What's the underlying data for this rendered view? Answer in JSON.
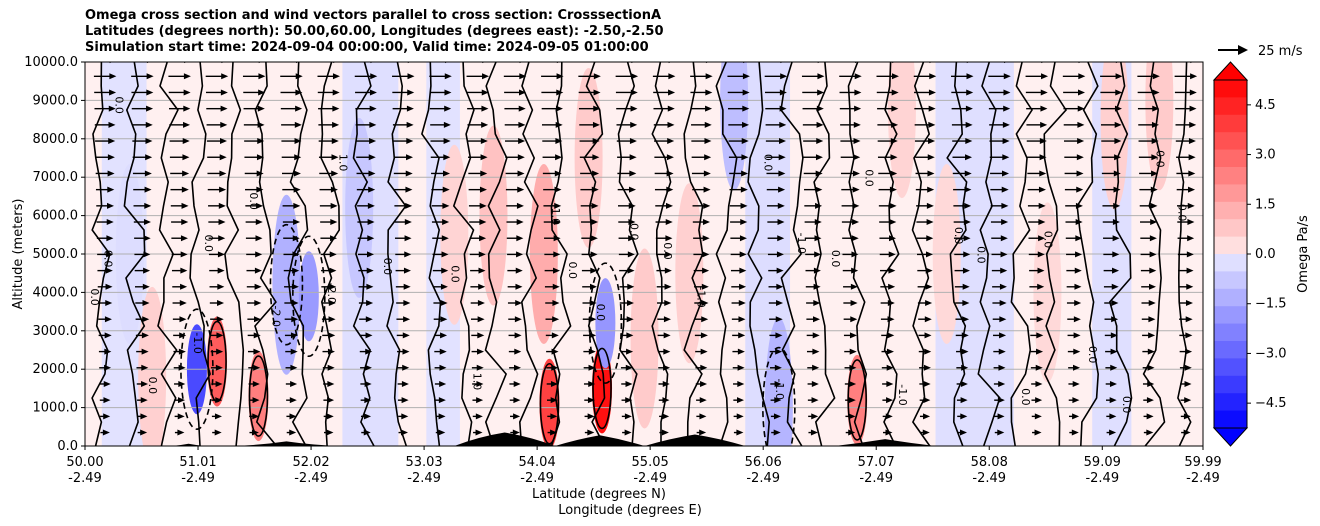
{
  "chart_data": {
    "type": "contour",
    "title_lines": [
      "Omega cross section and wind vectors parallel to cross section: CrosssectionA",
      "Latitudes (degrees north): 50.00,60.00, Longitudes (degrees east): -2.50,-2.50",
      "Simulation start time: 2024-09-04 00:00:00, Valid time: 2024-09-05 01:00:00"
    ],
    "ylabel": "Altitude (meters)",
    "xlabel_lines": [
      "Latitude (degrees N)",
      "Longitude (degrees E)"
    ],
    "ylim": [
      0,
      10000
    ],
    "y_ticks": [
      "0.0",
      "1000.0",
      "2000.0",
      "3000.0",
      "4000.0",
      "5000.0",
      "6000.0",
      "7000.0",
      "8000.0",
      "9000.0",
      "10000.0"
    ],
    "xlim": [
      50.0,
      59.99
    ],
    "x_ticks": [
      {
        "lat": "50.00",
        "lon": "-2.49"
      },
      {
        "lat": "51.01",
        "lon": "-2.49"
      },
      {
        "lat": "52.02",
        "lon": "-2.49"
      },
      {
        "lat": "53.03",
        "lon": "-2.49"
      },
      {
        "lat": "54.04",
        "lon": "-2.49"
      },
      {
        "lat": "55.05",
        "lon": "-2.49"
      },
      {
        "lat": "56.06",
        "lon": "-2.49"
      },
      {
        "lat": "57.07",
        "lon": "-2.49"
      },
      {
        "lat": "58.08",
        "lon": "-2.49"
      },
      {
        "lat": "59.09",
        "lon": "-2.49"
      },
      {
        "lat": "59.99",
        "lon": "-2.49"
      }
    ],
    "grid": "horizontal",
    "colorbar": {
      "label": "Omega Pa/s",
      "range": [
        -5.25,
        5.25
      ],
      "ticks": [
        "4.5",
        "3.0",
        "1.5",
        "0.0",
        "−1.5",
        "−3.0",
        "−4.5"
      ],
      "tick_values": [
        4.5,
        3.0,
        1.5,
        0.0,
        -1.5,
        -3.0,
        -4.5
      ],
      "levels": 20,
      "color_positive": "#ff0000",
      "color_negative": "#0000ff"
    },
    "wind_key": {
      "label": "25 m/s",
      "speed": 25
    },
    "contour_labels": [
      "0.0",
      "-1.0",
      "1.0",
      "-2.0",
      "2.0"
    ],
    "omega_cells": [
      {
        "lat": 50.6,
        "alt": 1800,
        "value": 0.6
      },
      {
        "lat": 51.0,
        "alt": 2000,
        "value": -3.6
      },
      {
        "lat": 51.18,
        "alt": 2200,
        "value": 3.2
      },
      {
        "lat": 51.55,
        "alt": 1300,
        "value": 2.4
      },
      {
        "lat": 51.8,
        "alt": 4200,
        "value": -1.3
      },
      {
        "lat": 52.0,
        "alt": 3900,
        "value": -1.8
      },
      {
        "lat": 52.45,
        "alt": 6200,
        "value": -0.8
      },
      {
        "lat": 53.3,
        "alt": 5500,
        "value": 0.5
      },
      {
        "lat": 53.65,
        "alt": 6000,
        "value": 0.9
      },
      {
        "lat": 54.1,
        "alt": 5000,
        "value": 1.4
      },
      {
        "lat": 54.15,
        "alt": 1100,
        "value": 3.8
      },
      {
        "lat": 54.5,
        "alt": 7500,
        "value": 0.7
      },
      {
        "lat": 54.62,
        "alt": 1500,
        "value": 4.9
      },
      {
        "lat": 54.65,
        "alt": 3200,
        "value": -1.9
      },
      {
        "lat": 55.0,
        "alt": 2800,
        "value": 0.7
      },
      {
        "lat": 55.4,
        "alt": 4500,
        "value": 0.6
      },
      {
        "lat": 56.2,
        "alt": 1000,
        "value": -1.2
      },
      {
        "lat": 56.9,
        "alt": 1200,
        "value": 2.4
      },
      {
        "lat": 57.3,
        "alt": 8800,
        "value": 0.5
      },
      {
        "lat": 57.7,
        "alt": 5000,
        "value": 0.4
      },
      {
        "lat": 58.6,
        "alt": 4000,
        "value": 0.4
      },
      {
        "lat": 59.2,
        "alt": 8500,
        "value": 0.6
      },
      {
        "lat": 59.6,
        "alt": 9000,
        "value": 0.7
      },
      {
        "lat": 55.8,
        "alt": 9000,
        "value": -1.0
      },
      {
        "lat": 50.4,
        "alt": 5000,
        "value": -0.3
      }
    ]
  }
}
